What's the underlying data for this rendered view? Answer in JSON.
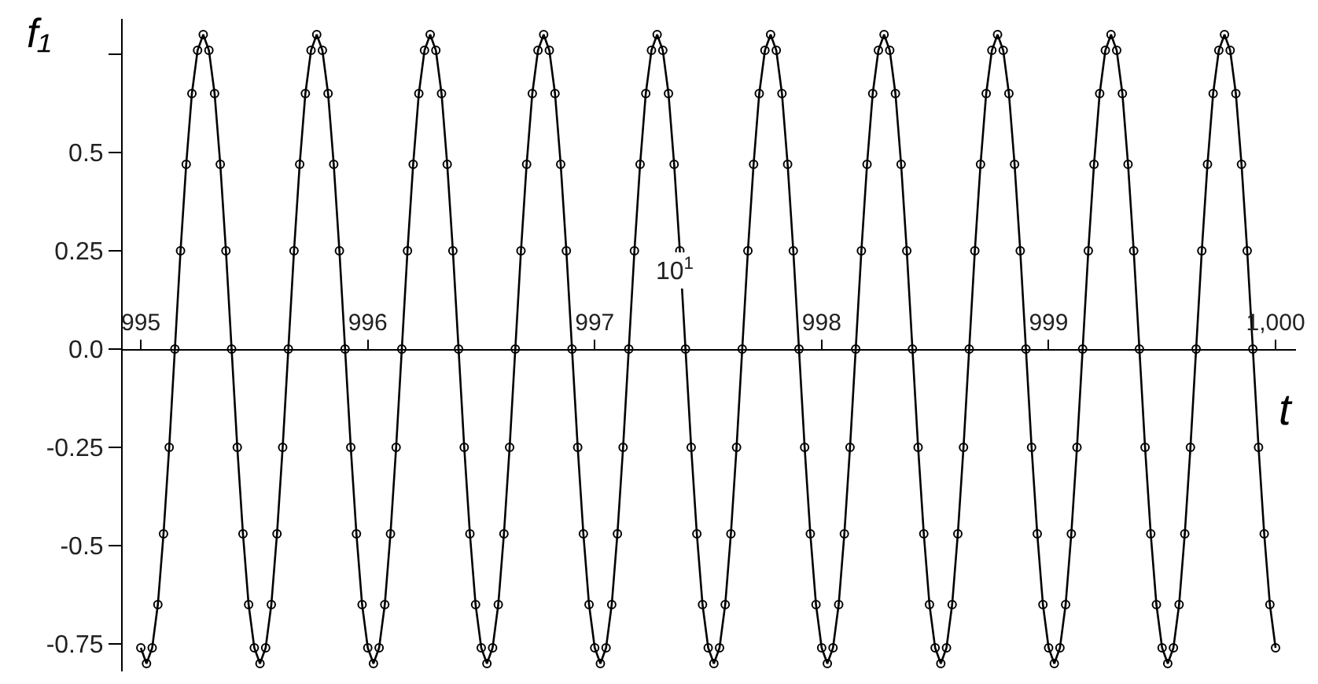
{
  "chart_data": {
    "type": "line",
    "xlabel": "t",
    "ylabel": "f₁",
    "annotations": [
      "10$^{1}$"
    ],
    "x": [
      995,
      995.025,
      995.05,
      995.075,
      995.1,
      995.125,
      995.15,
      995.175,
      995.2,
      995.225,
      995.25,
      995.275,
      995.3,
      995.325,
      995.35,
      995.375,
      995.4,
      995.425,
      995.45,
      995.475,
      995.5,
      995.525,
      995.55,
      995.575,
      995.6,
      995.625,
      995.65,
      995.675,
      995.7,
      995.725,
      995.75,
      995.775,
      995.8,
      995.825,
      995.85,
      995.875,
      995.9,
      995.925,
      995.95,
      995.975,
      996,
      996.025,
      996.05,
      996.075,
      996.1,
      996.125,
      996.15,
      996.175,
      996.2,
      996.225,
      996.25,
      996.275,
      996.3,
      996.325,
      996.35,
      996.375,
      996.4,
      996.425,
      996.45,
      996.475,
      996.5,
      996.525,
      996.55,
      996.575,
      996.6,
      996.625,
      996.65,
      996.675,
      996.7,
      996.725,
      996.75,
      996.775,
      996.8,
      996.825,
      996.85,
      996.875,
      996.9,
      996.925,
      996.95,
      996.975,
      997,
      997.025,
      997.05,
      997.075,
      997.1,
      997.125,
      997.15,
      997.175,
      997.2,
      997.225,
      997.25,
      997.275,
      997.3,
      997.325,
      997.35,
      997.375,
      997.4,
      997.425,
      997.45,
      997.475,
      997.5,
      997.525,
      997.55,
      997.575,
      997.6,
      997.625,
      997.65,
      997.675,
      997.7,
      997.725,
      997.75,
      997.775,
      997.8,
      997.825,
      997.85,
      997.875,
      997.9,
      997.925,
      997.95,
      997.975,
      998,
      998.025,
      998.05,
      998.075,
      998.1,
      998.125,
      998.15,
      998.175,
      998.2,
      998.225,
      998.25,
      998.275,
      998.3,
      998.325,
      998.35,
      998.375,
      998.4,
      998.425,
      998.45,
      998.475,
      998.5,
      998.525,
      998.55,
      998.575,
      998.6,
      998.625,
      998.65,
      998.675,
      998.7,
      998.725,
      998.75,
      998.775,
      998.8,
      998.825,
      998.85,
      998.875,
      998.9,
      998.925,
      998.95,
      998.975,
      999,
      999.025,
      999.05,
      999.075,
      999.1,
      999.125,
      999.15,
      999.175,
      999.2,
      999.225,
      999.25,
      999.275,
      999.3,
      999.325,
      999.35,
      999.375,
      999.4,
      999.425,
      999.45,
      999.475,
      999.5,
      999.525,
      999.55,
      999.575,
      999.6,
      999.625,
      999.65,
      999.675,
      999.7,
      999.725,
      999.75,
      999.775,
      999.8,
      999.825,
      999.85,
      999.875,
      999.9,
      999.925,
      999.95,
      999.975,
      1000
    ],
    "series": [
      {
        "color": "#000000",
        "values": [
          -0.76,
          -0.8,
          -0.76,
          -0.65,
          -0.47,
          -0.25,
          0,
          0.25,
          0.47,
          0.65,
          0.76,
          0.8,
          0.76,
          0.65,
          0.47,
          0.25,
          0,
          -0.25,
          -0.47,
          -0.65,
          -0.76,
          -0.8,
          -0.76,
          -0.65,
          -0.47,
          -0.25,
          0,
          0.25,
          0.47,
          0.65,
          0.76,
          0.8,
          0.76,
          0.65,
          0.47,
          0.25,
          0,
          -0.25,
          -0.47,
          -0.65,
          -0.76,
          -0.8,
          -0.76,
          -0.65,
          -0.47,
          -0.25,
          0,
          0.25,
          0.47,
          0.65,
          0.76,
          0.8,
          0.76,
          0.65,
          0.47,
          0.25,
          0,
          -0.25,
          -0.47,
          -0.65,
          -0.76,
          -0.8,
          -0.76,
          -0.65,
          -0.47,
          -0.25,
          0,
          0.25,
          0.47,
          0.65,
          0.76,
          0.8,
          0.76,
          0.65,
          0.47,
          0.25,
          0,
          -0.25,
          -0.47,
          -0.65,
          -0.76,
          -0.8,
          -0.76,
          -0.65,
          -0.47,
          -0.25,
          0,
          0.25,
          0.47,
          0.65,
          0.76,
          0.8,
          0.76,
          0.65,
          0.47,
          0.25,
          0,
          -0.25,
          -0.47,
          -0.65,
          -0.76,
          -0.8,
          -0.76,
          -0.65,
          -0.47,
          -0.25,
          0,
          0.25,
          0.47,
          0.65,
          0.76,
          0.8,
          0.76,
          0.65,
          0.47,
          0.25,
          0,
          -0.25,
          -0.47,
          -0.65,
          -0.76,
          -0.8,
          -0.76,
          -0.65,
          -0.47,
          -0.25,
          0,
          0.25,
          0.47,
          0.65,
          0.76,
          0.8,
          0.76,
          0.65,
          0.47,
          0.25,
          0,
          -0.25,
          -0.47,
          -0.65,
          -0.76,
          -0.8,
          -0.76,
          -0.65,
          -0.47,
          -0.25,
          0,
          0.25,
          0.47,
          0.65,
          0.76,
          0.8,
          0.76,
          0.65,
          0.47,
          0.25,
          0,
          -0.25,
          -0.47,
          -0.65,
          -0.76,
          -0.8,
          -0.76,
          -0.65,
          -0.47,
          -0.25,
          0,
          0.25,
          0.47,
          0.65,
          0.76,
          0.8,
          0.76,
          0.65,
          0.47,
          0.25,
          0,
          -0.25,
          -0.47,
          -0.65,
          -0.76,
          -0.8,
          -0.76,
          -0.65,
          -0.47,
          -0.25,
          0,
          0.25,
          0.47,
          0.65,
          0.76,
          0.8,
          0.76,
          0.65,
          0.47,
          0.25,
          0,
          -0.25,
          -0.47,
          -0.65,
          -0.76
        ]
      }
    ],
    "xlim": [
      994.92,
      1000.09
    ],
    "xticks": [
      995,
      996,
      997,
      998,
      999,
      {
        "value": 1000,
        "label": "1,000"
      }
    ],
    "ylim": [
      -0.82,
      0.84
    ],
    "yticks": [
      {
        "value": -0.75,
        "label": "-0.75"
      },
      {
        "value": -0.5,
        "label": "-0.5"
      },
      {
        "value": -0.25,
        "label": "-0.25"
      },
      {
        "value": 0,
        "label": "0.0"
      },
      {
        "value": 0.25,
        "label": "0.25"
      },
      {
        "value": 0.5,
        "label": "0.5"
      },
      {
        "value": 0.75,
        "label": null
      }
    ],
    "marker": "circle",
    "line_style": "solid"
  }
}
